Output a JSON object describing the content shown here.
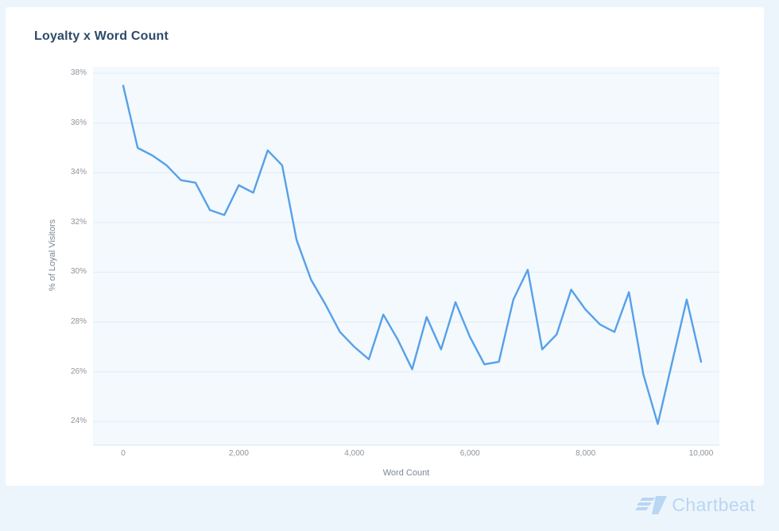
{
  "chart_data": {
    "type": "line",
    "title": "Loyalty x Word Count",
    "xlabel": "Word Count",
    "ylabel": "% of Loyal Visitors",
    "grid": "horizontal",
    "legend": "none",
    "plot_background": "#f3f9fd",
    "xlim": [
      -523,
      10316
    ],
    "ylim": [
      23.05,
      38.26
    ],
    "x_ticks": [
      0,
      2000,
      4000,
      6000,
      8000,
      10000
    ],
    "x_tick_labels": [
      "0",
      "2,000",
      "4,000",
      "6,000",
      "8,000",
      "10,000"
    ],
    "y_ticks": [
      38,
      36,
      34,
      32,
      30,
      28,
      26,
      24
    ],
    "y_tick_labels": [
      "38%",
      "36%",
      "34%",
      "32%",
      "30%",
      "28%",
      "26%",
      "24%"
    ],
    "series": [
      {
        "name": "% of Loyal Visitors",
        "color": "#57a0e9",
        "x": [
          0,
          250,
          500,
          750,
          1000,
          1250,
          1500,
          1750,
          2000,
          2250,
          2500,
          2750,
          3000,
          3250,
          3500,
          3750,
          4000,
          4250,
          4500,
          4750,
          5000,
          5250,
          5500,
          5750,
          6000,
          6250,
          6500,
          6750,
          7000,
          7250,
          7500,
          7750,
          8000,
          8250,
          8500,
          8750,
          9000,
          9250,
          9500,
          9750,
          10000
        ],
        "values": [
          37.5,
          35.0,
          34.7,
          34.3,
          33.7,
          33.6,
          32.5,
          32.3,
          33.5,
          33.2,
          34.9,
          34.3,
          31.3,
          29.7,
          28.7,
          27.6,
          27.0,
          26.5,
          28.3,
          27.3,
          26.1,
          28.2,
          26.9,
          28.8,
          27.4,
          26.3,
          26.4,
          28.9,
          30.1,
          26.9,
          27.5,
          29.3,
          28.5,
          27.9,
          27.6,
          29.2,
          25.9,
          23.9,
          26.4,
          28.9,
          26.4
        ]
      }
    ],
    "gridline_color": "#e2edf7",
    "axis_line_color": "#d8e4ee"
  },
  "footer": {
    "brand": "Chartbeat",
    "color": "#b9d6f3"
  }
}
